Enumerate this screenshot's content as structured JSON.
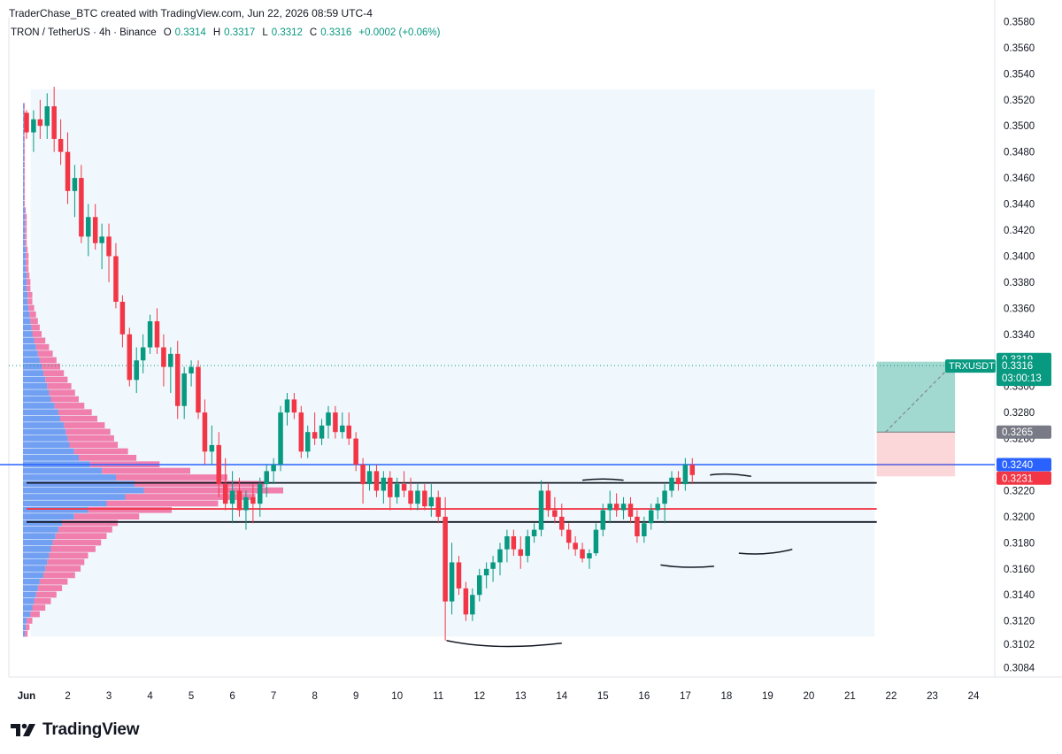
{
  "header": {
    "created_by": "TraderChase_BTC created with TradingView.com, Jun 22, 2026 08:59 UTC-4"
  },
  "legend": {
    "symbol": "TRON / TetherUS · 4h · Binance",
    "open_label": "O",
    "open": "0.3314",
    "high_label": "H",
    "high": "0.3317",
    "low_label": "L",
    "low": "0.3312",
    "close_label": "C",
    "close": "0.3316",
    "change": "+0.0002 (+0.06%)"
  },
  "footer": {
    "brand": "TradingView"
  },
  "colors": {
    "up": "#089981",
    "down": "#f23645",
    "vp_up": "#5b8ff0",
    "vp_down": "#f0609a",
    "support_line": "#f23645",
    "level_line": "#2962ff"
  },
  "chart_data": {
    "type": "candlestick",
    "symbol": "TRXUSDT",
    "timeframe": "4h",
    "y_axis": {
      "ticks": [
        "0.3084",
        "0.3102",
        "0.3120",
        "0.3140",
        "0.3160",
        "0.3180",
        "0.3200",
        "0.3220",
        "0.3240",
        "0.3260",
        "0.3280",
        "0.3300",
        "0.3320",
        "0.3340",
        "0.3360",
        "0.3380",
        "0.3400",
        "0.3420",
        "0.3440",
        "0.3460",
        "0.3480",
        "0.3500",
        "0.3520",
        "0.3540",
        "0.3560",
        "0.3580"
      ],
      "ylim": [
        0.3077,
        0.3583
      ]
    },
    "x_axis": {
      "ticks": [
        "Jun",
        "2",
        "3",
        "4",
        "5",
        "6",
        "7",
        "8",
        "9",
        "10",
        "11",
        "12",
        "13",
        "14",
        "15",
        "16",
        "17",
        "18",
        "19",
        "20",
        "21",
        "22",
        "23",
        "24"
      ],
      "xlim": [
        0,
        23.55
      ]
    },
    "price_labels": [
      {
        "label": "0.3319",
        "price": 0.3319,
        "kind": "target"
      },
      {
        "label": "TRXUSDT",
        "price": 0.3316,
        "kind": "symbol"
      },
      {
        "label": "0.3316",
        "price": 0.3316,
        "kind": "last"
      },
      {
        "label": "03:00:13",
        "price": 0.3316,
        "kind": "countdown"
      },
      {
        "label": "0.3265",
        "price": 0.3265,
        "kind": "entry"
      },
      {
        "label": "0.3240",
        "price": 0.324,
        "kind": "level"
      },
      {
        "label": "0.3231",
        "price": 0.3231,
        "kind": "stop"
      }
    ],
    "horizontal_lines": [
      {
        "price": 0.324,
        "color": "#2962ff",
        "name": "blue-level"
      },
      {
        "price": 0.3226,
        "color": "#131722",
        "name": "range-top"
      },
      {
        "price": 0.3206,
        "color": "#f23645",
        "name": "poc"
      },
      {
        "price": 0.3196,
        "color": "#131722",
        "name": "range-bottom"
      }
    ],
    "position": {
      "entry": 0.3265,
      "target": 0.3319,
      "stop": 0.3231,
      "start_day": 20.65,
      "end_day": 22.55
    },
    "candles": [
      [
        0.0,
        0.351,
        0.3512,
        0.349,
        0.3495
      ],
      [
        0.17,
        0.3495,
        0.3512,
        0.348,
        0.3505
      ],
      [
        0.33,
        0.3505,
        0.352,
        0.349,
        0.35
      ],
      [
        0.5,
        0.35,
        0.3525,
        0.349,
        0.3515
      ],
      [
        0.67,
        0.3515,
        0.353,
        0.348,
        0.349
      ],
      [
        0.83,
        0.349,
        0.3505,
        0.347,
        0.348
      ],
      [
        1.0,
        0.348,
        0.3495,
        0.344,
        0.345
      ],
      [
        1.17,
        0.345,
        0.347,
        0.343,
        0.346
      ],
      [
        1.33,
        0.346,
        0.347,
        0.341,
        0.3415
      ],
      [
        1.5,
        0.3415,
        0.344,
        0.34,
        0.343
      ],
      [
        1.67,
        0.343,
        0.344,
        0.3405,
        0.341
      ],
      [
        1.83,
        0.341,
        0.3425,
        0.339,
        0.3415
      ],
      [
        2.0,
        0.3415,
        0.3425,
        0.338,
        0.34
      ],
      [
        2.17,
        0.34,
        0.341,
        0.336,
        0.3365
      ],
      [
        2.33,
        0.3365,
        0.337,
        0.333,
        0.334
      ],
      [
        2.5,
        0.334,
        0.3345,
        0.33,
        0.3305
      ],
      [
        2.67,
        0.3305,
        0.333,
        0.3295,
        0.332
      ],
      [
        2.83,
        0.332,
        0.334,
        0.331,
        0.333
      ],
      [
        3.0,
        0.333,
        0.3355,
        0.3325,
        0.335
      ],
      [
        3.17,
        0.335,
        0.336,
        0.3325,
        0.333
      ],
      [
        3.33,
        0.333,
        0.334,
        0.33,
        0.3315
      ],
      [
        3.5,
        0.3315,
        0.333,
        0.3295,
        0.3325
      ],
      [
        3.67,
        0.3325,
        0.3335,
        0.3275,
        0.3285
      ],
      [
        3.83,
        0.3285,
        0.3315,
        0.3275,
        0.331
      ],
      [
        4.0,
        0.331,
        0.332,
        0.33,
        0.3315
      ],
      [
        4.17,
        0.3315,
        0.332,
        0.3275,
        0.328
      ],
      [
        4.33,
        0.328,
        0.329,
        0.324,
        0.325
      ],
      [
        4.5,
        0.325,
        0.327,
        0.324,
        0.3255
      ],
      [
        4.67,
        0.3255,
        0.3265,
        0.3215,
        0.3225
      ],
      [
        4.83,
        0.3225,
        0.3245,
        0.3205,
        0.321
      ],
      [
        5.0,
        0.321,
        0.3235,
        0.3195,
        0.322
      ],
      [
        5.17,
        0.322,
        0.323,
        0.32,
        0.3205
      ],
      [
        5.33,
        0.3205,
        0.322,
        0.319,
        0.3215
      ],
      [
        5.5,
        0.3215,
        0.3225,
        0.3195,
        0.321
      ],
      [
        5.67,
        0.321,
        0.323,
        0.32,
        0.3225
      ],
      [
        5.83,
        0.3225,
        0.324,
        0.3215,
        0.3235
      ],
      [
        6.0,
        0.3235,
        0.3245,
        0.3225,
        0.324
      ],
      [
        6.17,
        0.324,
        0.3285,
        0.3235,
        0.328
      ],
      [
        6.33,
        0.328,
        0.3295,
        0.327,
        0.329
      ],
      [
        6.5,
        0.329,
        0.3295,
        0.3275,
        0.328
      ],
      [
        6.67,
        0.328,
        0.3285,
        0.3245,
        0.325
      ],
      [
        6.83,
        0.325,
        0.327,
        0.3245,
        0.3265
      ],
      [
        7.0,
        0.3265,
        0.328,
        0.3255,
        0.326
      ],
      [
        7.17,
        0.326,
        0.3275,
        0.3255,
        0.327
      ],
      [
        7.33,
        0.327,
        0.3285,
        0.326,
        0.328
      ],
      [
        7.5,
        0.328,
        0.3285,
        0.326,
        0.3265
      ],
      [
        7.67,
        0.3265,
        0.328,
        0.326,
        0.327
      ],
      [
        7.83,
        0.327,
        0.328,
        0.3255,
        0.326
      ],
      [
        8.0,
        0.326,
        0.3265,
        0.3235,
        0.324
      ],
      [
        8.17,
        0.324,
        0.3245,
        0.321,
        0.3225
      ],
      [
        8.33,
        0.3225,
        0.324,
        0.322,
        0.3235
      ],
      [
        8.5,
        0.3235,
        0.324,
        0.3215,
        0.322
      ],
      [
        8.67,
        0.322,
        0.3235,
        0.321,
        0.323
      ],
      [
        8.83,
        0.323,
        0.3235,
        0.3205,
        0.3215
      ],
      [
        9.0,
        0.3215,
        0.323,
        0.321,
        0.3225
      ],
      [
        9.17,
        0.3225,
        0.3235,
        0.3215,
        0.322
      ],
      [
        9.33,
        0.322,
        0.323,
        0.3205,
        0.321
      ],
      [
        9.5,
        0.321,
        0.3225,
        0.3205,
        0.322
      ],
      [
        9.67,
        0.322,
        0.3225,
        0.3205,
        0.3208
      ],
      [
        9.83,
        0.3208,
        0.3225,
        0.32,
        0.3215
      ],
      [
        10.0,
        0.3215,
        0.322,
        0.3195,
        0.32
      ],
      [
        10.17,
        0.32,
        0.3215,
        0.3105,
        0.3135
      ],
      [
        10.33,
        0.3135,
        0.318,
        0.3125,
        0.3165
      ],
      [
        10.5,
        0.3165,
        0.317,
        0.314,
        0.3145
      ],
      [
        10.67,
        0.3145,
        0.315,
        0.312,
        0.3125
      ],
      [
        10.83,
        0.3125,
        0.3145,
        0.312,
        0.314
      ],
      [
        11.0,
        0.314,
        0.316,
        0.3135,
        0.3155
      ],
      [
        11.17,
        0.3155,
        0.3165,
        0.3145,
        0.316
      ],
      [
        11.33,
        0.316,
        0.317,
        0.315,
        0.3165
      ],
      [
        11.5,
        0.3165,
        0.318,
        0.3155,
        0.3175
      ],
      [
        11.67,
        0.3175,
        0.319,
        0.3165,
        0.3185
      ],
      [
        11.83,
        0.3185,
        0.319,
        0.317,
        0.3175
      ],
      [
        12.0,
        0.3175,
        0.3185,
        0.316,
        0.317
      ],
      [
        12.17,
        0.317,
        0.319,
        0.3165,
        0.3185
      ],
      [
        12.33,
        0.3185,
        0.3195,
        0.318,
        0.319
      ],
      [
        12.5,
        0.319,
        0.3228,
        0.3185,
        0.322
      ],
      [
        12.67,
        0.322,
        0.3225,
        0.32,
        0.3205
      ],
      [
        12.83,
        0.3205,
        0.3215,
        0.3195,
        0.32
      ],
      [
        13.0,
        0.32,
        0.321,
        0.3185,
        0.319
      ],
      [
        13.17,
        0.319,
        0.3195,
        0.3175,
        0.318
      ],
      [
        13.33,
        0.318,
        0.3185,
        0.317,
        0.3175
      ],
      [
        13.5,
        0.3175,
        0.318,
        0.3165,
        0.3168
      ],
      [
        13.67,
        0.3168,
        0.3175,
        0.316,
        0.3172
      ],
      [
        13.83,
        0.3172,
        0.3195,
        0.317,
        0.319
      ],
      [
        14.0,
        0.319,
        0.321,
        0.3185,
        0.3205
      ],
      [
        14.17,
        0.3205,
        0.322,
        0.3195,
        0.321
      ],
      [
        14.33,
        0.321,
        0.3218,
        0.32,
        0.3205
      ],
      [
        14.5,
        0.3205,
        0.3215,
        0.3198,
        0.321
      ],
      [
        14.67,
        0.321,
        0.3215,
        0.3195,
        0.32
      ],
      [
        14.83,
        0.32,
        0.3205,
        0.318,
        0.3185
      ],
      [
        15.0,
        0.3185,
        0.32,
        0.318,
        0.3195
      ],
      [
        15.17,
        0.3195,
        0.321,
        0.319,
        0.3205
      ],
      [
        15.33,
        0.3205,
        0.3215,
        0.3198,
        0.321
      ],
      [
        15.5,
        0.321,
        0.3225,
        0.3195,
        0.322
      ],
      [
        15.67,
        0.322,
        0.3235,
        0.3215,
        0.323
      ],
      [
        15.83,
        0.323,
        0.3235,
        0.322,
        0.3225
      ],
      [
        16.0,
        0.3225,
        0.3245,
        0.322,
        0.324
      ],
      [
        16.17,
        0.324,
        0.3245,
        0.3225,
        0.3232
      ]
    ],
    "volume_profile": {
      "bin_size": 0.0005,
      "bins": [
        [
          0.311,
          2,
          3
        ],
        [
          0.3115,
          3,
          4
        ],
        [
          0.312,
          4,
          6
        ],
        [
          0.3125,
          8,
          10
        ],
        [
          0.313,
          10,
          14
        ],
        [
          0.3135,
          12,
          18
        ],
        [
          0.314,
          14,
          22
        ],
        [
          0.3145,
          16,
          26
        ],
        [
          0.315,
          18,
          30
        ],
        [
          0.3155,
          22,
          34
        ],
        [
          0.316,
          24,
          38
        ],
        [
          0.3165,
          26,
          40
        ],
        [
          0.317,
          28,
          42
        ],
        [
          0.3175,
          30,
          48
        ],
        [
          0.318,
          32,
          52
        ],
        [
          0.3185,
          35,
          55
        ],
        [
          0.319,
          38,
          58
        ],
        [
          0.3195,
          42,
          60
        ],
        [
          0.32,
          55,
          70
        ],
        [
          0.3205,
          70,
          90
        ],
        [
          0.321,
          90,
          120
        ],
        [
          0.3215,
          110,
          140
        ],
        [
          0.322,
          130,
          150
        ],
        [
          0.3225,
          120,
          140
        ],
        [
          0.323,
          100,
          120
        ],
        [
          0.3235,
          85,
          95
        ],
        [
          0.324,
          72,
          75
        ],
        [
          0.3245,
          60,
          62
        ],
        [
          0.325,
          55,
          58
        ],
        [
          0.3255,
          50,
          52
        ],
        [
          0.326,
          48,
          50
        ],
        [
          0.3265,
          46,
          48
        ],
        [
          0.327,
          44,
          44
        ],
        [
          0.3275,
          40,
          40
        ],
        [
          0.328,
          38,
          36
        ],
        [
          0.3285,
          34,
          32
        ],
        [
          0.329,
          30,
          30
        ],
        [
          0.3295,
          28,
          28
        ],
        [
          0.33,
          26,
          26
        ],
        [
          0.3305,
          24,
          24
        ],
        [
          0.331,
          22,
          22
        ],
        [
          0.3315,
          20,
          20
        ],
        [
          0.332,
          18,
          18
        ],
        [
          0.3325,
          16,
          16
        ],
        [
          0.333,
          14,
          14
        ],
        [
          0.3335,
          12,
          12
        ],
        [
          0.334,
          10,
          10
        ],
        [
          0.3345,
          9,
          9
        ],
        [
          0.335,
          8,
          8
        ],
        [
          0.3355,
          7,
          7
        ],
        [
          0.336,
          6,
          6
        ],
        [
          0.3365,
          5,
          5
        ],
        [
          0.337,
          5,
          5
        ],
        [
          0.3375,
          4,
          4
        ],
        [
          0.338,
          4,
          4
        ],
        [
          0.3385,
          4,
          3
        ],
        [
          0.339,
          3,
          3
        ],
        [
          0.3395,
          3,
          3
        ],
        [
          0.34,
          3,
          3
        ],
        [
          0.3405,
          3,
          2
        ],
        [
          0.341,
          2,
          2
        ],
        [
          0.3415,
          2,
          2
        ],
        [
          0.342,
          2,
          2
        ],
        [
          0.3425,
          2,
          2
        ],
        [
          0.343,
          2,
          2
        ],
        [
          0.3435,
          2,
          1
        ],
        [
          0.344,
          1,
          1
        ],
        [
          0.3445,
          1,
          1
        ],
        [
          0.345,
          1,
          1
        ],
        [
          0.3455,
          1,
          1
        ],
        [
          0.346,
          1,
          1
        ],
        [
          0.3465,
          1,
          1
        ],
        [
          0.347,
          1,
          1
        ],
        [
          0.3475,
          1,
          1
        ],
        [
          0.348,
          1,
          1
        ],
        [
          0.3485,
          1,
          1
        ],
        [
          0.349,
          1,
          1
        ],
        [
          0.3495,
          1,
          1
        ],
        [
          0.35,
          1,
          1
        ],
        [
          0.3505,
          1,
          1
        ],
        [
          0.351,
          1,
          1
        ],
        [
          0.3515,
          1,
          1
        ]
      ]
    }
  }
}
